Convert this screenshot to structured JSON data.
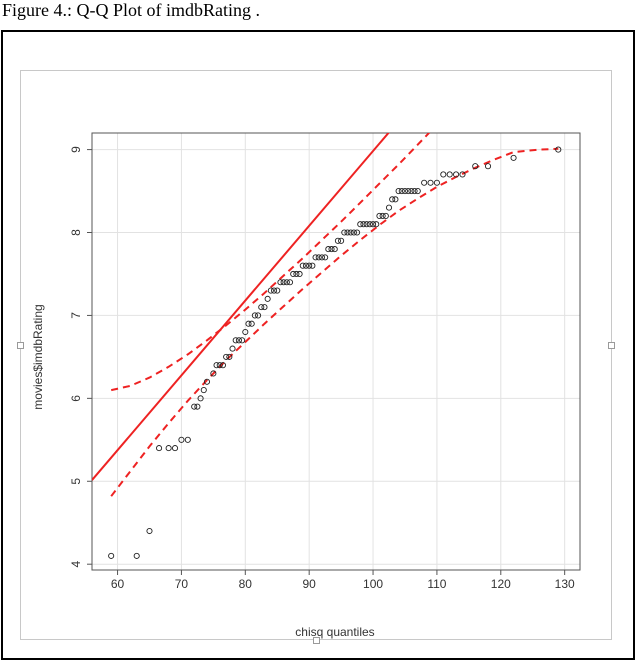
{
  "caption": "Figure 4.: Q-Q Plot of imdbRating .",
  "chart_data": {
    "type": "scatter",
    "title": "",
    "xlabel": "chisq quantiles",
    "ylabel": "movies$imdbRating",
    "xlim": [
      56,
      132.4
    ],
    "ylim": [
      3.93,
      9.2
    ],
    "x_ticks": [
      60,
      70,
      80,
      90,
      100,
      110,
      120,
      130
    ],
    "y_ticks": [
      4,
      5,
      6,
      7,
      8,
      9
    ],
    "grid": true,
    "points": {
      "x": [
        59,
        63,
        65,
        66.5,
        68,
        69,
        70,
        71,
        72,
        72.5,
        73,
        73.5,
        74,
        75,
        75.5,
        76,
        76.5,
        77,
        77.5,
        78,
        78.5,
        79,
        79.5,
        80,
        80.5,
        81,
        81.5,
        82,
        82.5,
        83,
        83.5,
        84,
        84.5,
        85,
        85.5,
        86,
        86.5,
        87,
        87.5,
        88,
        88.5,
        89,
        89.5,
        90,
        90.5,
        91,
        91.5,
        92,
        92.5,
        93,
        93.5,
        94,
        94.5,
        95,
        95.5,
        96,
        96.5,
        97,
        97.5,
        98,
        98.5,
        99,
        99.5,
        100,
        100.5,
        101,
        101.5,
        102,
        102.5,
        103,
        103.5,
        104,
        104.5,
        105,
        105.5,
        106,
        106.5,
        107,
        108,
        109,
        110,
        111,
        112,
        113,
        114,
        116,
        118,
        122,
        129
      ],
      "y": [
        4.1,
        4.1,
        4.4,
        5.4,
        5.4,
        5.4,
        5.5,
        5.5,
        5.9,
        5.9,
        6.0,
        6.1,
        6.2,
        6.3,
        6.4,
        6.4,
        6.4,
        6.5,
        6.5,
        6.6,
        6.7,
        6.7,
        6.7,
        6.8,
        6.9,
        6.9,
        7.0,
        7.0,
        7.1,
        7.1,
        7.2,
        7.3,
        7.3,
        7.3,
        7.4,
        7.4,
        7.4,
        7.4,
        7.5,
        7.5,
        7.5,
        7.6,
        7.6,
        7.6,
        7.6,
        7.7,
        7.7,
        7.7,
        7.7,
        7.8,
        7.8,
        7.8,
        7.9,
        7.9,
        8.0,
        8.0,
        8.0,
        8.0,
        8.0,
        8.1,
        8.1,
        8.1,
        8.1,
        8.1,
        8.1,
        8.2,
        8.2,
        8.2,
        8.3,
        8.4,
        8.4,
        8.5,
        8.5,
        8.5,
        8.5,
        8.5,
        8.5,
        8.5,
        8.6,
        8.6,
        8.6,
        8.7,
        8.7,
        8.7,
        8.7,
        8.8,
        8.8,
        8.9,
        9.0
      ]
    },
    "reference_line": {
      "intercept": -0.037,
      "slope": 0.0902,
      "color": "#ee2222"
    },
    "envelope_upper": {
      "x": [
        59,
        62,
        65,
        68,
        71,
        74,
        77,
        80,
        83,
        86,
        89,
        92,
        95,
        98,
        101,
        104,
        107,
        110
      ],
      "y": [
        6.1,
        6.15,
        6.25,
        6.38,
        6.53,
        6.7,
        6.88,
        7.07,
        7.27,
        7.48,
        7.69,
        7.91,
        8.13,
        8.36,
        8.59,
        8.82,
        9.06,
        9.3
      ]
    },
    "envelope_lower": {
      "x": [
        59,
        62,
        65,
        68,
        71,
        74,
        77,
        80,
        83,
        86,
        89,
        92,
        95,
        98,
        101,
        104,
        107,
        110,
        113,
        116,
        119,
        122,
        126,
        129
      ],
      "y": [
        4.82,
        5.12,
        5.42,
        5.7,
        5.97,
        6.22,
        6.46,
        6.68,
        6.9,
        7.11,
        7.32,
        7.52,
        7.72,
        7.91,
        8.09,
        8.26,
        8.41,
        8.55,
        8.67,
        8.78,
        8.88,
        8.97,
        9.0,
        9.01
      ]
    }
  }
}
